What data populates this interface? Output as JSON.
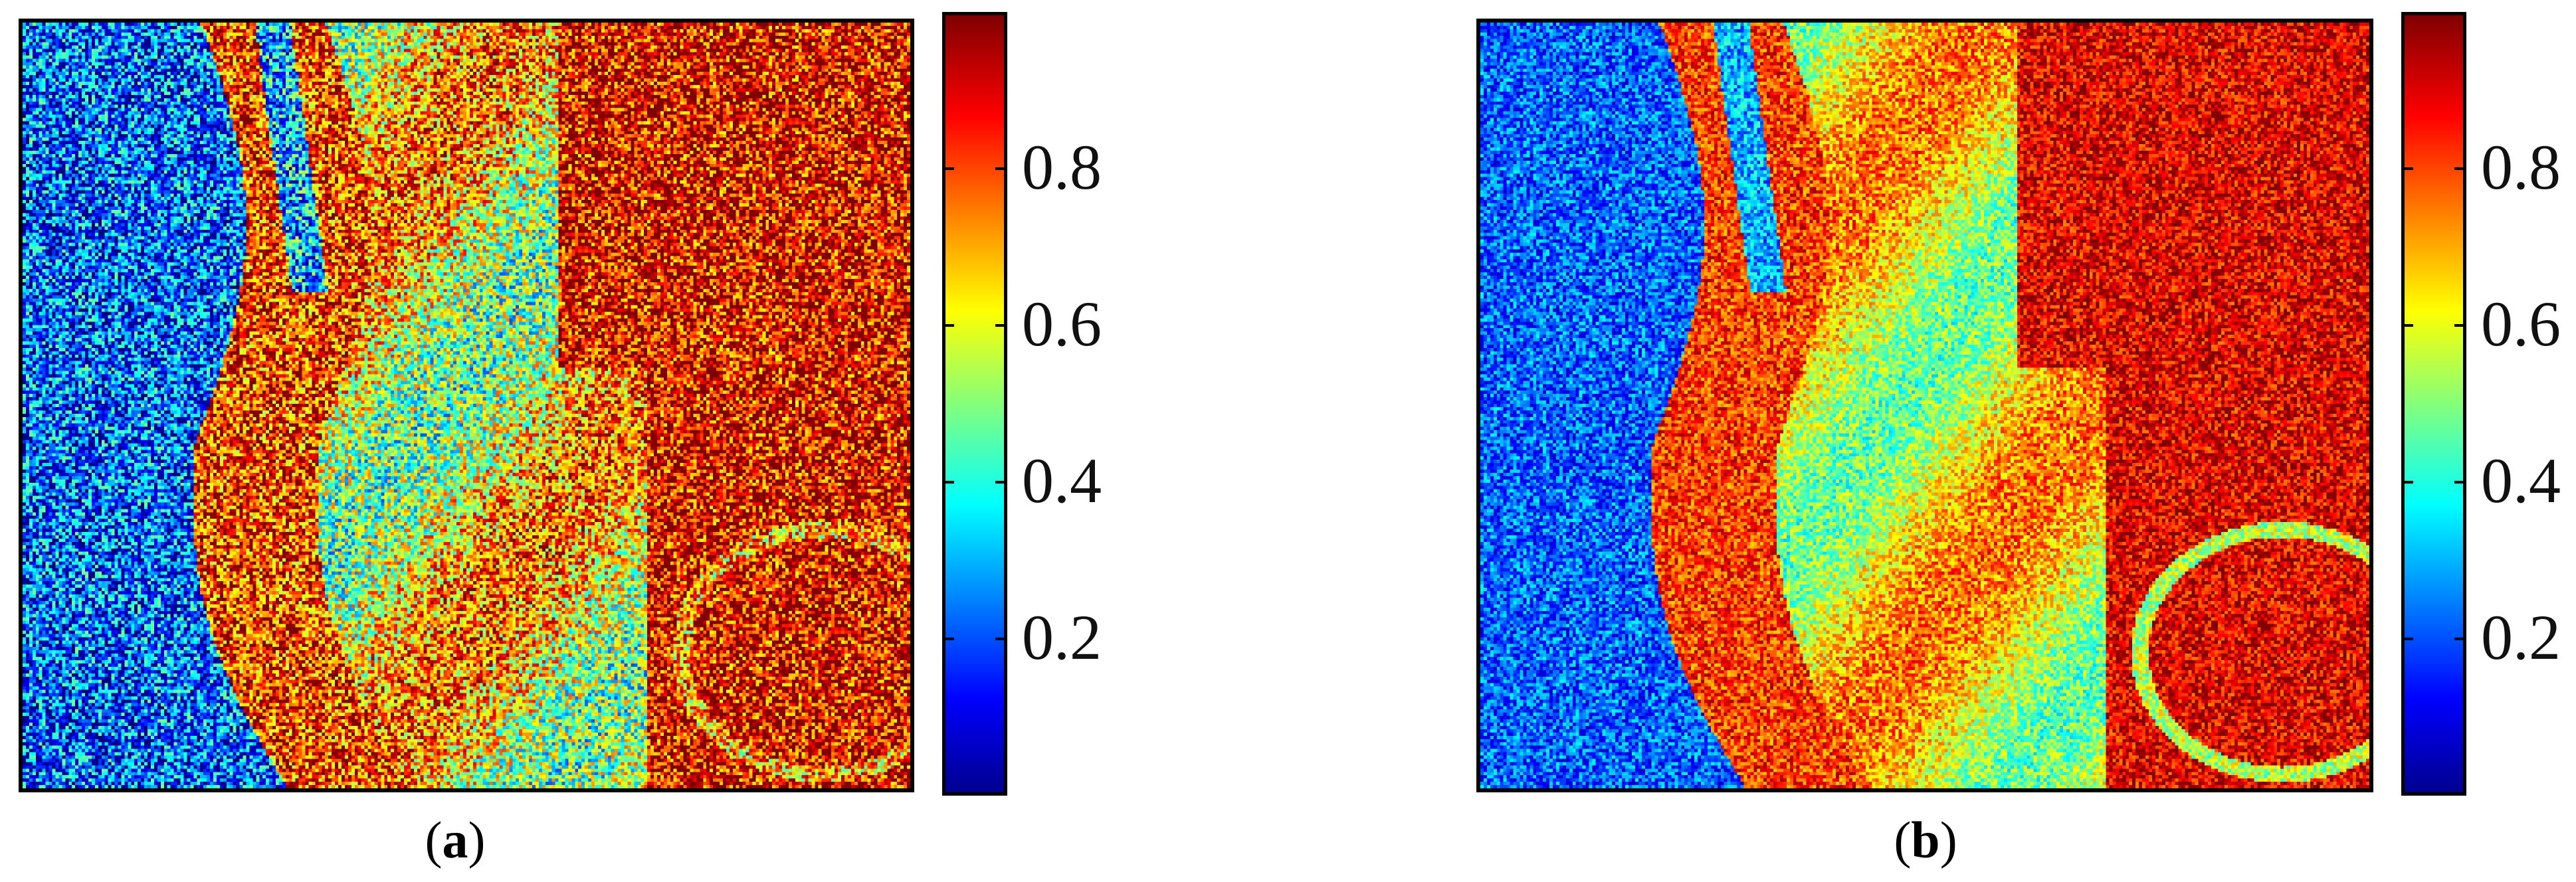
{
  "panels": [
    {
      "id": "a",
      "caption_open": "(",
      "caption_letter": "a",
      "caption_close": ")",
      "colorbar": {
        "ticks": [
          "0.2",
          "0.4",
          "0.6",
          "0.8"
        ],
        "range": [
          0,
          1
        ]
      }
    },
    {
      "id": "b",
      "caption_open": "(",
      "caption_letter": "b",
      "caption_close": ")",
      "colorbar": {
        "ticks": [
          "0.2",
          "0.4",
          "0.6",
          "0.8"
        ],
        "range": [
          0,
          1
        ]
      }
    }
  ],
  "colormap": "jet",
  "colors": {
    "low": "#00008f",
    "mid": "#ffff00",
    "high": "#800000"
  }
}
